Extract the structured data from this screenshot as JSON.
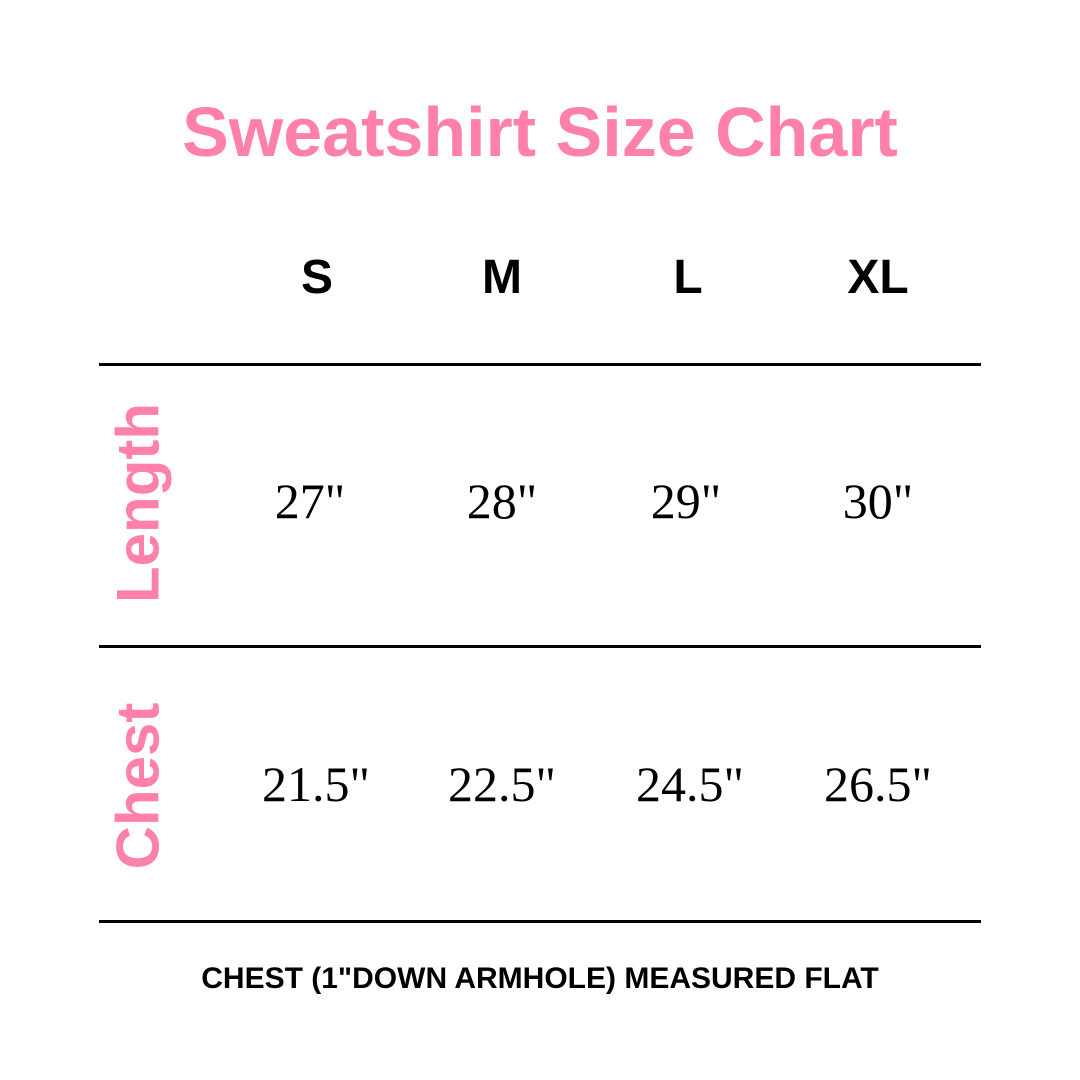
{
  "title": "Sweatshirt Size Chart",
  "accent_color": "#ff80a8",
  "sizes": [
    "S",
    "M",
    "L",
    "XL"
  ],
  "rows": [
    {
      "label": "Length",
      "values": [
        "27\"",
        "28\"",
        "29\"",
        "30\""
      ]
    },
    {
      "label": "Chest",
      "values": [
        "21.5\"",
        "22.5\"",
        "24.5\"",
        "26.5\""
      ]
    }
  ],
  "footnote": "CHEST (1\"DOWN ARMHOLE) MEASURED FLAT"
}
